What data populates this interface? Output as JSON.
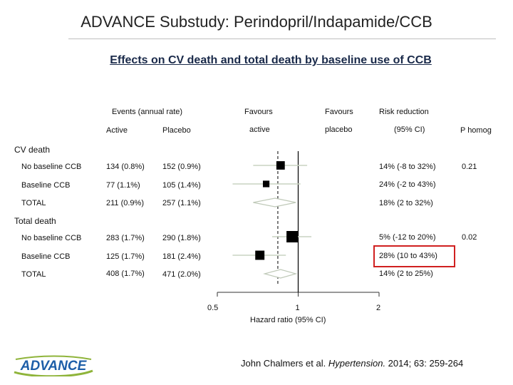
{
  "slide": {
    "title": "ADVANCE Substudy: Perindopril/Indapamide/CCB",
    "subtitle": "Effects on CV death and total death by baseline use of CCB"
  },
  "headers": {
    "events": "Events (annual rate)",
    "active": "Active",
    "placebo": "Placebo",
    "favours_active_1": "Favours",
    "favours_active_2": "active",
    "favours_placebo_1": "Favours",
    "favours_placebo_2": "placebo",
    "rr_1": "Risk reduction",
    "rr_2": "(95% CI)",
    "phomog": "P homog"
  },
  "sections": [
    {
      "label": "CV death",
      "phomog": "0.21"
    },
    {
      "label": "Total death",
      "phomog": "0.02"
    }
  ],
  "rows": [
    {
      "label": "No baseline CCB",
      "active": "134 (0.8%)",
      "placebo": "152 (0.9%)",
      "rr": "14% (-8 to 32%)"
    },
    {
      "label": "Baseline CCB",
      "active": "77 (1.1%)",
      "placebo": "105 (1.4%)",
      "rr": "24% (-2 to 43%)"
    },
    {
      "label": "TOTAL",
      "active": "211 (0.9%)",
      "placebo": "257 (1.1%)",
      "rr": "18% (2 to 32%)"
    },
    {
      "label": "No baseline CCB",
      "active": "283 (1.7%)",
      "placebo": "290 (1.8%)",
      "rr": "5% (-12 to 20%)"
    },
    {
      "label": "Baseline CCB",
      "active": "125 (1.7%)",
      "placebo": "181 (2.4%)",
      "rr": "28% (10 to 43%)"
    },
    {
      "label": "TOTAL",
      "active": "408 (1.7%)",
      "placebo": "471 (2.0%)",
      "rr": "14% (2 to 25%)"
    }
  ],
  "chart_data": {
    "type": "forest",
    "xlabel": "Hazard ratio (95% CI)",
    "x_scale": "log",
    "xlim": [
      0.5,
      2
    ],
    "ticks": [
      {
        "value": 0.5,
        "label": "0.5"
      },
      {
        "value": 1,
        "label": "1"
      },
      {
        "value": 2,
        "label": "2"
      }
    ],
    "reference_line": 1,
    "overall_dashed_line": 0.84,
    "points": [
      {
        "hr": 0.86,
        "lo": 0.68,
        "hi": 1.08,
        "kind": "square",
        "weight": 0.62
      },
      {
        "hr": 0.76,
        "lo": 0.57,
        "hi": 1.02,
        "kind": "square",
        "weight": 0.38
      },
      {
        "hr": 0.82,
        "lo": 0.68,
        "hi": 0.98,
        "kind": "diamond"
      },
      {
        "hr": 0.95,
        "lo": 0.8,
        "hi": 1.12,
        "kind": "square",
        "weight": 1.0
      },
      {
        "hr": 0.72,
        "lo": 0.57,
        "hi": 0.9,
        "kind": "square",
        "weight": 0.72
      },
      {
        "hr": 0.86,
        "lo": 0.75,
        "hi": 0.98,
        "kind": "diamond"
      }
    ],
    "colors": {
      "marker": "#000000",
      "ci": "#c9d4c2",
      "diamond_fill": "#ffffff",
      "diamond_stroke": "#bfc9b8",
      "axis": "#333333"
    }
  },
  "footer": {
    "logo_text": "ADVANCE",
    "citation_pre": "John Chalmers et al. ",
    "citation_journal": "Hypertension.",
    "citation_post": " 2014; 63: 259-264"
  }
}
